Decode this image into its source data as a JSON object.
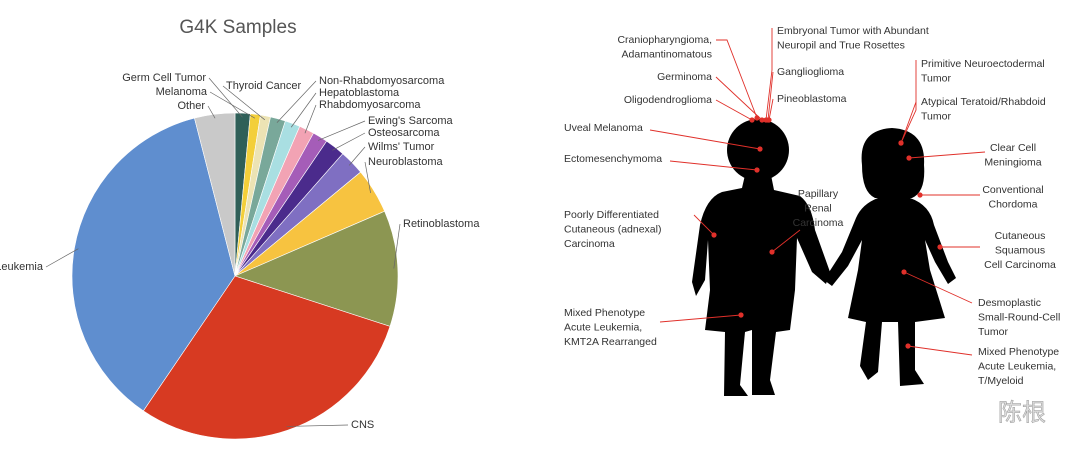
{
  "chart_data": {
    "type": "pie",
    "title": "G4K Samples",
    "categories": [
      "Germ Cell Tumor",
      "Melanoma",
      "Thyroid Cancer",
      "Non-Rhabdomyosarcoma",
      "Hepatoblastoma",
      "Rhabdomyosarcoma",
      "Ewing's Sarcoma",
      "Osteosarcoma",
      "Wilms' Tumor",
      "Neuroblastoma",
      "Retinoblastoma",
      "CNS",
      "Leukemia",
      "Other"
    ],
    "values": [
      1.5,
      1,
      1,
      1.5,
      1.5,
      1.5,
      1.5,
      2,
      2.5,
      4.5,
      11.5,
      29.5,
      36.5,
      4
    ],
    "colors": [
      "#2f5f58",
      "#f3cf3a",
      "#ece3b4",
      "#79a89a",
      "#a9dfe2",
      "#f2a3b4",
      "#a55db8",
      "#4b2b8c",
      "#7f6fc2",
      "#f7c340",
      "#8c9652",
      "#d73a22",
      "#5f8ecf",
      "#c9c9c9"
    ]
  },
  "diagram": {
    "labels": [
      [
        "Craniopharyngioma,",
        "Adamantinomatous"
      ],
      [
        "Germinoma"
      ],
      [
        "Oligodendroglioma"
      ],
      [
        "Embryonal Tumor with Abundant",
        "Neuropil and True Rosettes"
      ],
      [
        "Ganglioglioma"
      ],
      [
        "Pineoblastoma"
      ],
      [
        "Uveal Melanoma"
      ],
      [
        "Ectomesenchymoma"
      ],
      [
        "Poorly Differentiated",
        "Cutaneous (adnexal)",
        "Carcinoma"
      ],
      [
        "Papillary",
        "Renal",
        "Carcinoma"
      ],
      [
        "Mixed Phenotype",
        "Acute Leukemia,",
        "KMT2A Rearranged"
      ],
      [
        "Primitive Neuroectodermal",
        "Tumor"
      ],
      [
        "Atypical Teratoid/Rhabdoid",
        "Tumor"
      ],
      [
        "Clear Cell",
        "Meningioma"
      ],
      [
        "Conventional",
        "Chordoma"
      ],
      [
        "Cutaneous",
        "Squamous",
        "Cell Carcinoma"
      ],
      [
        "Desmoplastic",
        "Small-Round-Cell",
        "Tumor"
      ],
      [
        "Mixed Phenotype",
        "Acute Leukemia,",
        "T/Myeloid"
      ]
    ]
  },
  "watermark": "陈根"
}
